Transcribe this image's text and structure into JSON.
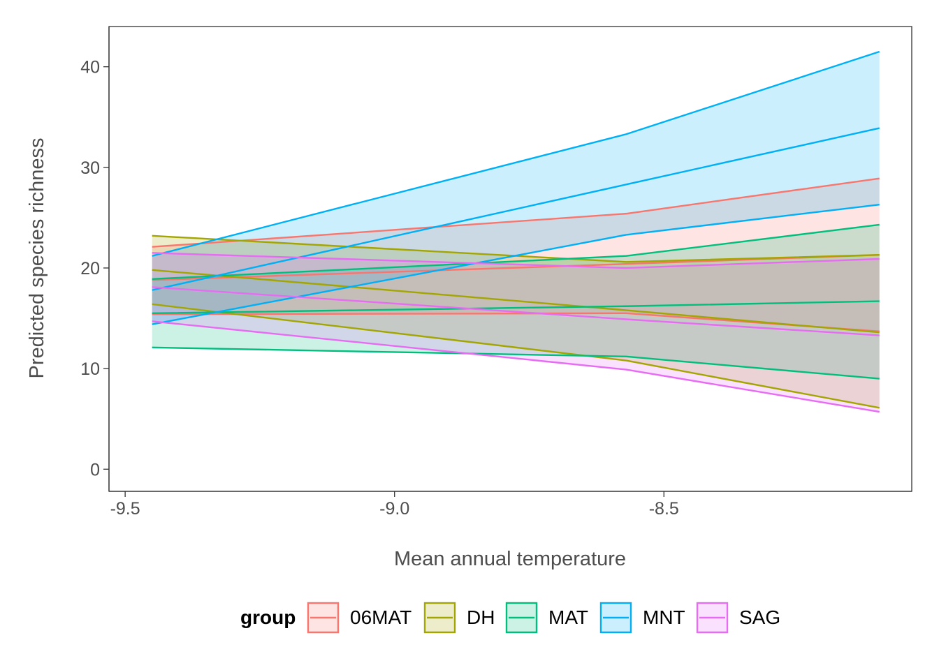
{
  "chart_data": {
    "type": "area",
    "xlabel": "Mean annual temperature",
    "ylabel": "Predicted species richness",
    "xlim": [
      -9.53,
      -8.04
    ],
    "ylim": [
      -2.2,
      44.0
    ],
    "x_ticks": [
      -9.5,
      -9.0,
      -8.5
    ],
    "x_tick_labels": [
      "-9.5",
      "-9.0",
      "-8.5"
    ],
    "y_ticks": [
      0,
      10,
      20,
      30,
      40
    ],
    "y_tick_labels": [
      "0",
      "10",
      "20",
      "30",
      "40"
    ],
    "grid": false,
    "legend_position": "bottom",
    "legend_title": "group",
    "x": [
      -9.45,
      -8.57,
      -8.1
    ],
    "series": [
      {
        "name": "06MAT",
        "color": "#F8766D",
        "fit": [
          18.8,
          20.4,
          21.3
        ],
        "lower": [
          15.4,
          15.5,
          13.7
        ],
        "upper": [
          22.1,
          25.4,
          28.9
        ]
      },
      {
        "name": "DH",
        "color": "#A3A500",
        "fit": [
          19.8,
          15.8,
          13.6
        ],
        "lower": [
          16.4,
          10.8,
          6.1
        ],
        "upper": [
          23.2,
          20.6,
          21.3
        ]
      },
      {
        "name": "MAT",
        "color": "#00BF7D",
        "fit": [
          15.5,
          16.2,
          16.7
        ],
        "lower": [
          12.1,
          11.2,
          9.0
        ],
        "upper": [
          18.9,
          21.2,
          24.3
        ]
      },
      {
        "name": "MNT",
        "color": "#00B0F6",
        "fit": [
          17.8,
          28.3,
          33.9
        ],
        "lower": [
          14.4,
          23.3,
          26.3
        ],
        "upper": [
          21.2,
          33.3,
          41.5
        ]
      },
      {
        "name": "SAG",
        "color": "#E76BF3",
        "fit": [
          18.1,
          14.9,
          13.3
        ],
        "lower": [
          14.7,
          9.9,
          5.7
        ],
        "upper": [
          21.5,
          20.0,
          20.9
        ]
      }
    ]
  }
}
